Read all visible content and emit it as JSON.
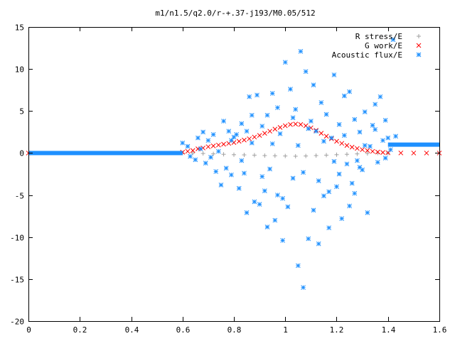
{
  "chart_data": {
    "type": "scatter",
    "title": "m1/n1.5/q2.0/r-+.37-j193/M0.05/512",
    "xlabel": "",
    "ylabel": "",
    "xlim": [
      0,
      1.6
    ],
    "ylim": [
      -20,
      15
    ],
    "grid": false,
    "legend_position": "top-right",
    "x_ticks": [
      {
        "value": 0,
        "label": "0"
      },
      {
        "value": 0.2,
        "label": "0.2"
      },
      {
        "value": 0.4,
        "label": "0.4"
      },
      {
        "value": 0.6,
        "label": "0.6"
      },
      {
        "value": 0.8,
        "label": "0.8"
      },
      {
        "value": 1.0,
        "label": "1"
      },
      {
        "value": 1.2,
        "label": "1.2"
      },
      {
        "value": 1.4,
        "label": "1.4"
      },
      {
        "value": 1.6,
        "label": "1.6"
      }
    ],
    "y_ticks": [
      {
        "value": 15,
        "label": "15"
      },
      {
        "value": 10,
        "label": "10"
      },
      {
        "value": 5,
        "label": "5"
      },
      {
        "value": 0,
        "label": "0"
      },
      {
        "value": -5,
        "label": "-5"
      },
      {
        "value": -10,
        "label": "-10"
      },
      {
        "value": -15,
        "label": "-15"
      },
      {
        "value": -20,
        "label": "-20"
      }
    ],
    "series": [
      {
        "name": "R stress/E",
        "marker": "plus",
        "color": "#a0a0a0",
        "points": [
          [
            0.6,
            0.0
          ],
          [
            0.64,
            0.0
          ],
          [
            0.68,
            -0.05
          ],
          [
            0.72,
            -0.1
          ],
          [
            0.76,
            -0.15
          ],
          [
            0.8,
            -0.2
          ],
          [
            0.84,
            -0.22
          ],
          [
            0.88,
            -0.25
          ],
          [
            0.92,
            -0.3
          ],
          [
            0.96,
            -0.32
          ],
          [
            1.0,
            -0.35
          ],
          [
            1.04,
            -0.38
          ],
          [
            1.08,
            -0.35
          ],
          [
            1.12,
            -0.3
          ],
          [
            1.16,
            -0.25
          ],
          [
            1.2,
            -0.2
          ],
          [
            1.24,
            -0.15
          ],
          [
            1.28,
            -0.1
          ],
          [
            1.32,
            -0.05
          ],
          [
            1.36,
            0.0
          ],
          [
            1.4,
            0.0
          ]
        ]
      },
      {
        "name": "G work/E",
        "marker": "cross",
        "color": "#ff0000",
        "points": [
          [
            0.0,
            0.0
          ],
          [
            0.6,
            0.1
          ],
          [
            0.62,
            0.2
          ],
          [
            0.64,
            0.3
          ],
          [
            0.66,
            0.5
          ],
          [
            0.68,
            0.6
          ],
          [
            0.7,
            0.75
          ],
          [
            0.72,
            0.85
          ],
          [
            0.74,
            0.95
          ],
          [
            0.76,
            1.05
          ],
          [
            0.78,
            1.15
          ],
          [
            0.8,
            1.25
          ],
          [
            0.82,
            1.4
          ],
          [
            0.84,
            1.55
          ],
          [
            0.86,
            1.7
          ],
          [
            0.88,
            1.9
          ],
          [
            0.9,
            2.1
          ],
          [
            0.92,
            2.35
          ],
          [
            0.94,
            2.6
          ],
          [
            0.96,
            2.85
          ],
          [
            0.98,
            3.05
          ],
          [
            1.0,
            3.25
          ],
          [
            1.02,
            3.4
          ],
          [
            1.04,
            3.45
          ],
          [
            1.06,
            3.4
          ],
          [
            1.08,
            3.25
          ],
          [
            1.1,
            3.0
          ],
          [
            1.12,
            2.7
          ],
          [
            1.14,
            2.35
          ],
          [
            1.16,
            2.0
          ],
          [
            1.18,
            1.7
          ],
          [
            1.2,
            1.4
          ],
          [
            1.22,
            1.15
          ],
          [
            1.24,
            0.9
          ],
          [
            1.26,
            0.7
          ],
          [
            1.28,
            0.55
          ],
          [
            1.3,
            0.4
          ],
          [
            1.32,
            0.3
          ],
          [
            1.34,
            0.2
          ],
          [
            1.36,
            0.12
          ],
          [
            1.38,
            0.07
          ],
          [
            1.4,
            0.03
          ],
          [
            1.45,
            0.01
          ],
          [
            1.5,
            0.0
          ],
          [
            1.55,
            0.0
          ],
          [
            1.6,
            0.0
          ]
        ]
      },
      {
        "name": "Acoustic flux/E",
        "marker": "star",
        "color": "#1e90ff",
        "baseline": [
          {
            "x_from": 0.0,
            "x_to": 0.6,
            "y": 0.0
          },
          {
            "x_from": 1.4,
            "x_to": 1.6,
            "y": 1.0
          }
        ],
        "points": [
          [
            0.6,
            1.2
          ],
          [
            0.62,
            0.8
          ],
          [
            0.63,
            -0.4
          ],
          [
            0.65,
            -0.8
          ],
          [
            0.66,
            1.8
          ],
          [
            0.67,
            0.5
          ],
          [
            0.68,
            2.5
          ],
          [
            0.69,
            -1.2
          ],
          [
            0.7,
            1.5
          ],
          [
            0.71,
            -0.5
          ],
          [
            0.72,
            2.2
          ],
          [
            0.73,
            -2.2
          ],
          [
            0.74,
            0.2
          ],
          [
            0.75,
            -3.8
          ],
          [
            0.76,
            3.8
          ],
          [
            0.77,
            -1.8
          ],
          [
            0.78,
            2.6
          ],
          [
            0.79,
            -2.6
          ],
          [
            0.8,
            1.9
          ],
          [
            0.81,
            2.2
          ],
          [
            0.82,
            -4.2
          ],
          [
            0.83,
            3.5
          ],
          [
            0.84,
            -2.4
          ],
          [
            0.85,
            -7.1
          ],
          [
            0.86,
            6.7
          ],
          [
            0.87,
            1.2
          ],
          [
            0.88,
            -5.8
          ],
          [
            0.89,
            6.9
          ],
          [
            0.9,
            -6.1
          ],
          [
            0.91,
            3.2
          ],
          [
            0.92,
            -4.5
          ],
          [
            0.93,
            4.5
          ],
          [
            0.94,
            -1.9
          ],
          [
            0.95,
            7.1
          ],
          [
            0.96,
            -8.0
          ],
          [
            0.97,
            5.4
          ],
          [
            0.98,
            2.3
          ],
          [
            0.99,
            -10.4
          ],
          [
            1.0,
            10.8
          ],
          [
            1.01,
            -6.4
          ],
          [
            1.02,
            7.6
          ],
          [
            1.03,
            -3.0
          ],
          [
            1.04,
            5.2
          ],
          [
            1.05,
            -13.4
          ],
          [
            1.06,
            12.1
          ],
          [
            1.07,
            -16.0
          ],
          [
            1.08,
            9.7
          ],
          [
            1.09,
            -10.2
          ],
          [
            1.1,
            3.8
          ],
          [
            1.11,
            -6.8
          ],
          [
            1.12,
            2.6
          ],
          [
            1.13,
            -3.3
          ],
          [
            1.14,
            6.0
          ],
          [
            1.15,
            -5.1
          ],
          [
            1.16,
            4.6
          ],
          [
            1.17,
            -8.9
          ],
          [
            1.18,
            1.8
          ],
          [
            1.19,
            9.3
          ],
          [
            1.2,
            -4.0
          ],
          [
            1.21,
            3.4
          ],
          [
            1.22,
            -7.8
          ],
          [
            1.23,
            6.8
          ],
          [
            1.24,
            -1.3
          ],
          [
            1.25,
            7.3
          ],
          [
            1.26,
            -3.6
          ],
          [
            1.27,
            4.0
          ],
          [
            1.28,
            -0.9
          ],
          [
            1.29,
            2.5
          ],
          [
            1.3,
            -2.0
          ],
          [
            1.31,
            4.9
          ],
          [
            1.32,
            -7.1
          ],
          [
            1.33,
            0.8
          ],
          [
            1.34,
            3.3
          ],
          [
            1.35,
            2.8
          ],
          [
            1.36,
            -1.1
          ],
          [
            1.37,
            6.7
          ],
          [
            1.38,
            1.5
          ],
          [
            1.39,
            -0.6
          ],
          [
            1.4,
            1.8
          ],
          [
            1.41,
            0.4
          ],
          [
            1.42,
            13.5
          ],
          [
            1.43,
            2.0
          ],
          [
            0.83,
            -0.9
          ],
          [
            0.91,
            -2.8
          ],
          [
            0.97,
            -5.0
          ],
          [
            1.03,
            4.2
          ],
          [
            1.09,
            2.9
          ],
          [
            1.15,
            1.4
          ],
          [
            1.21,
            -2.5
          ],
          [
            1.27,
            -4.8
          ],
          [
            0.87,
            4.5
          ],
          [
            0.93,
            -8.8
          ],
          [
            0.99,
            -5.4
          ],
          [
            1.05,
            0.9
          ],
          [
            1.11,
            8.1
          ],
          [
            1.17,
            -4.6
          ],
          [
            1.23,
            2.1
          ],
          [
            1.29,
            -1.7
          ],
          [
            1.35,
            5.8
          ],
          [
            0.79,
            1.5
          ],
          [
            0.85,
            2.6
          ],
          [
            0.95,
            1.1
          ],
          [
            1.07,
            -2.3
          ],
          [
            1.13,
            -10.8
          ],
          [
            1.19,
            -1.0
          ],
          [
            1.25,
            -6.3
          ],
          [
            1.31,
            0.9
          ],
          [
            1.39,
            3.9
          ]
        ]
      }
    ]
  }
}
